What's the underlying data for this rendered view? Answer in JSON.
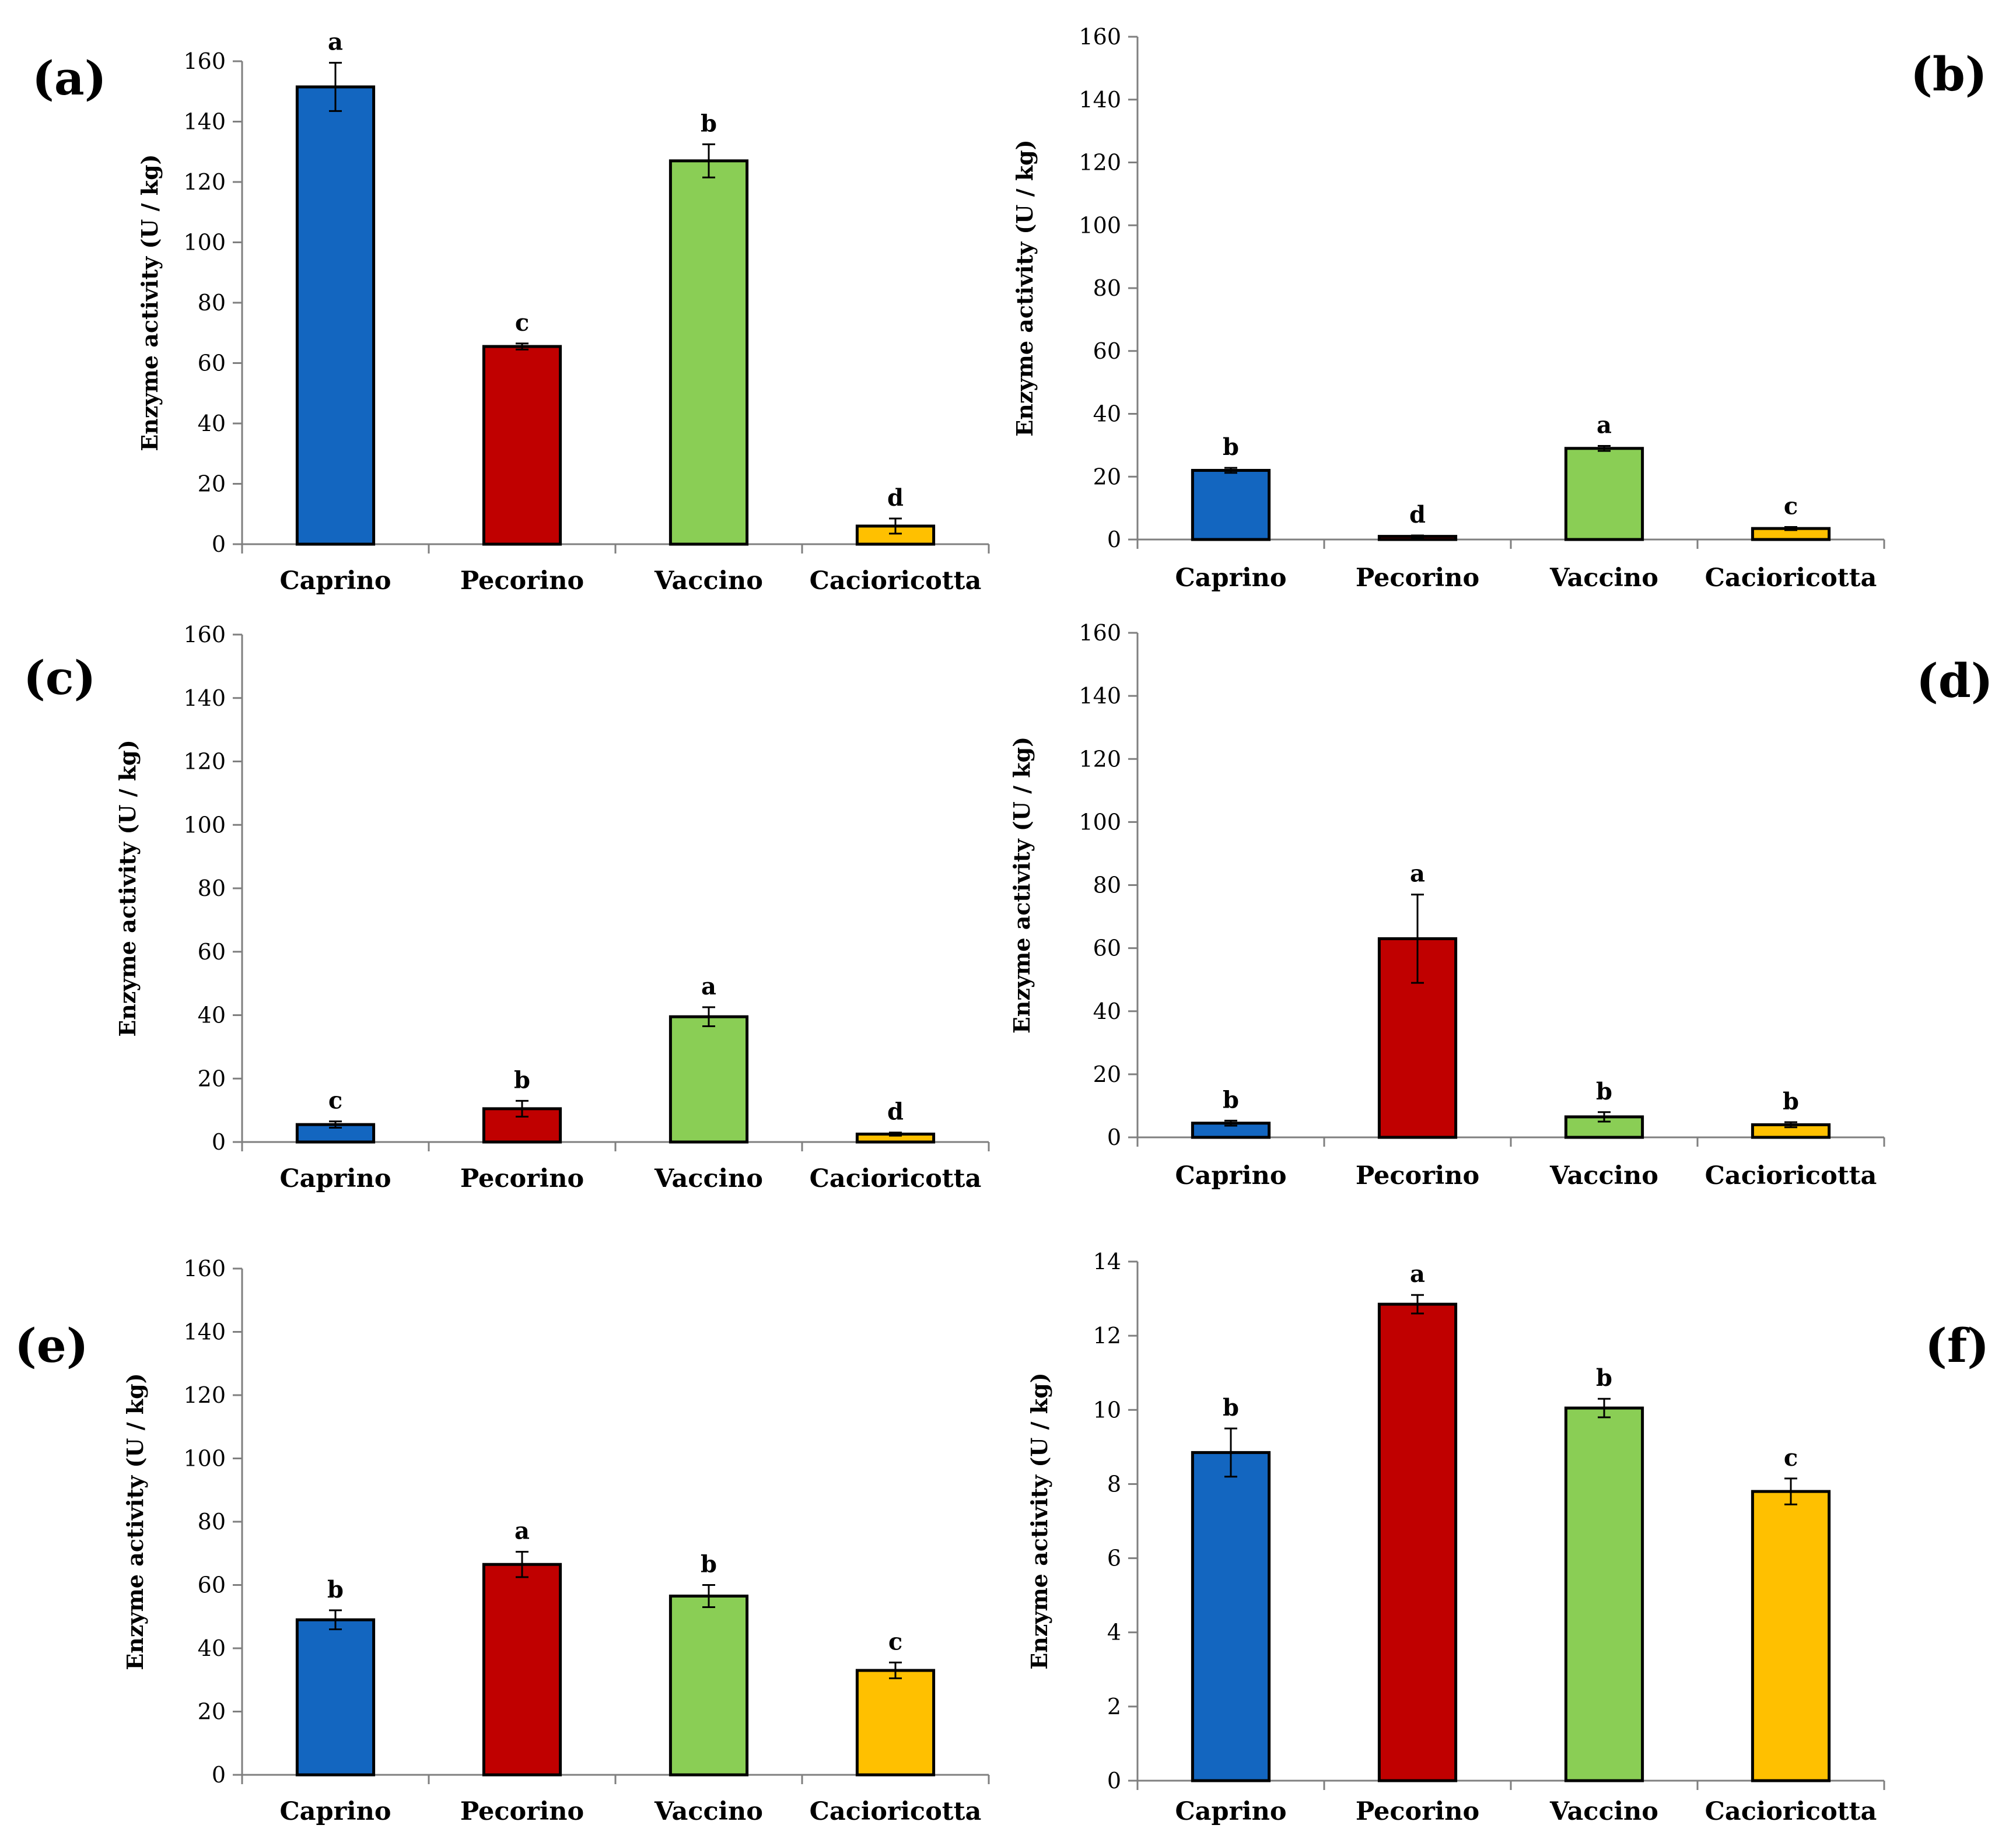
{
  "figure": {
    "panels": [
      "(a)",
      "(b)",
      "(c)",
      "(d)",
      "(e)",
      "(f)"
    ]
  },
  "chart_data": [
    {
      "panel": "(a)",
      "type": "bar",
      "categories": [
        "Caprino",
        "Pecorino",
        "Vaccino",
        "Cacioricotta"
      ],
      "values": [
        151.5,
        65.5,
        127,
        6
      ],
      "errors": [
        8,
        1,
        5.5,
        2.5
      ],
      "letters": [
        "a",
        "c",
        "b",
        "d"
      ],
      "colors": [
        "#1366C0",
        "#C00000",
        "#8ACE55",
        "#FFC000"
      ],
      "ylabel": "Enzyme activity (U / kg)",
      "ylim": [
        0,
        160
      ],
      "yticks": [
        0,
        20,
        40,
        60,
        80,
        100,
        120,
        140,
        160
      ],
      "grid": false,
      "legend": "none"
    },
    {
      "panel": "(b)",
      "type": "bar",
      "categories": [
        "Caprino",
        "Pecorino",
        "Vaccino",
        "Cacioricotta"
      ],
      "values": [
        22,
        1,
        29,
        3.5
      ],
      "errors": [
        0.8,
        0.3,
        0.8,
        0.5
      ],
      "letters": [
        "b",
        "d",
        "a",
        "c"
      ],
      "colors": [
        "#1366C0",
        "#C00000",
        "#8ACE55",
        "#FFC000"
      ],
      "ylabel": "Enzyme activity (U / kg)",
      "ylim": [
        0,
        160
      ],
      "yticks": [
        0,
        20,
        40,
        60,
        80,
        100,
        120,
        140,
        160
      ],
      "grid": false,
      "legend": "none"
    },
    {
      "panel": "(c)",
      "type": "bar",
      "categories": [
        "Caprino",
        "Pecorino",
        "Vaccino",
        "Cacioricotta"
      ],
      "values": [
        5.5,
        10.5,
        39.5,
        2.5
      ],
      "errors": [
        1,
        2.5,
        3,
        0.5
      ],
      "letters": [
        "c",
        "b",
        "a",
        "d"
      ],
      "colors": [
        "#1366C0",
        "#C00000",
        "#8ACE55",
        "#FFC000"
      ],
      "ylabel": "Enzyme activity (U / kg)",
      "ylim": [
        0,
        160
      ],
      "yticks": [
        0,
        20,
        40,
        60,
        80,
        100,
        120,
        140,
        160
      ],
      "grid": false,
      "legend": "none"
    },
    {
      "panel": "(d)",
      "type": "bar",
      "categories": [
        "Caprino",
        "Pecorino",
        "Vaccino",
        "Cacioricotta"
      ],
      "values": [
        4.5,
        63,
        6.5,
        4
      ],
      "errors": [
        0.8,
        14,
        1.5,
        0.8
      ],
      "letters": [
        "b",
        "a",
        "b",
        "b"
      ],
      "colors": [
        "#1366C0",
        "#C00000",
        "#8ACE55",
        "#FFC000"
      ],
      "ylabel": "Enzyme activity (U / kg)",
      "ylim": [
        0,
        160
      ],
      "yticks": [
        0,
        20,
        40,
        60,
        80,
        100,
        120,
        140,
        160
      ],
      "grid": false,
      "legend": "none"
    },
    {
      "panel": "(e)",
      "type": "bar",
      "categories": [
        "Caprino",
        "Pecorino",
        "Vaccino",
        "Cacioricotta"
      ],
      "values": [
        49,
        66.5,
        56.5,
        33
      ],
      "errors": [
        3,
        4,
        3.5,
        2.5
      ],
      "letters": [
        "b",
        "a",
        "b",
        "c"
      ],
      "colors": [
        "#1366C0",
        "#C00000",
        "#8ACE55",
        "#FFC000"
      ],
      "ylabel": "Enzyme activity (U / kg)",
      "ylim": [
        0,
        160
      ],
      "yticks": [
        0,
        20,
        40,
        60,
        80,
        100,
        120,
        140,
        160
      ],
      "grid": false,
      "legend": "none"
    },
    {
      "panel": "(f)",
      "type": "bar",
      "categories": [
        "Caprino",
        "Pecorino",
        "Vaccino",
        "Cacioricotta"
      ],
      "values": [
        8.85,
        12.85,
        10.05,
        7.8
      ],
      "errors": [
        0.65,
        0.25,
        0.25,
        0.35
      ],
      "letters": [
        "b",
        "a",
        "b",
        "c"
      ],
      "colors": [
        "#1366C0",
        "#C00000",
        "#8ACE55",
        "#FFC000"
      ],
      "ylabel": "Enzyme  activity (U / kg)",
      "ylim": [
        0,
        14
      ],
      "yticks": [
        0,
        2,
        4,
        6,
        8,
        10,
        12,
        14
      ],
      "grid": false,
      "legend": "none"
    }
  ]
}
